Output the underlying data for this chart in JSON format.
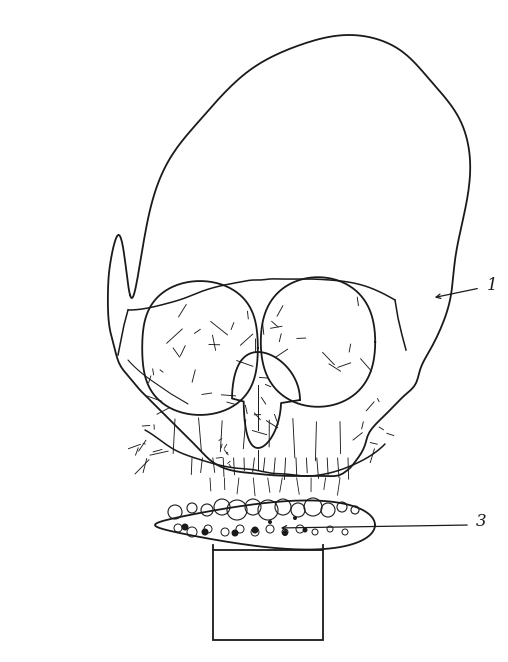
{
  "background_color": "#ffffff",
  "line_color": "#1a1a1a",
  "label_1": "1",
  "label_3": "3",
  "figure_width": 5.08,
  "figure_height": 6.62,
  "dpi": 100
}
